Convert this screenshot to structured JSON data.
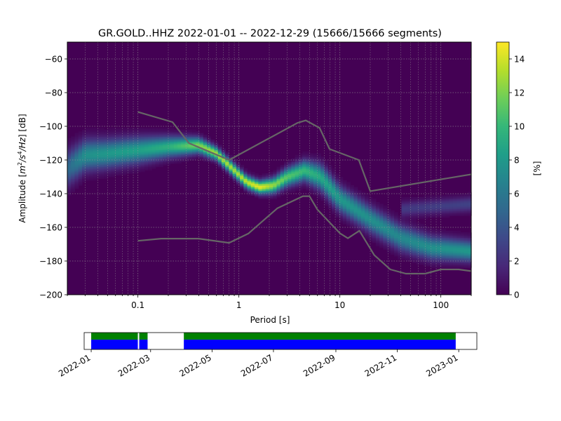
{
  "title": "GR.GOLD..HHZ   2022-01-01 -- 2022-12-29  (15666/15666 segments)",
  "chart_data": {
    "type": "heatmap",
    "title": "GR.GOLD..HHZ   2022-01-01 -- 2022-12-29  (15666/15666 segments)",
    "xlabel": "Period [s]",
    "ylabel_parts": [
      "Amplitude [",
      "m",
      "2",
      "/",
      "s",
      "4",
      "/",
      "Hz",
      "] [dB]"
    ],
    "xscale": "log",
    "xlim": [
      0.02,
      200
    ],
    "ylim": [
      -200,
      -50
    ],
    "xticks": [
      {
        "v": 0.1,
        "label": "0.1"
      },
      {
        "v": 1,
        "label": "1"
      },
      {
        "v": 10,
        "label": "10"
      },
      {
        "v": 100,
        "label": "100"
      }
    ],
    "yticks": [
      {
        "v": -200,
        "label": "−200"
      },
      {
        "v": -180,
        "label": "−180"
      },
      {
        "v": -160,
        "label": "−160"
      },
      {
        "v": -140,
        "label": "−140"
      },
      {
        "v": -120,
        "label": "−120"
      },
      {
        "v": -100,
        "label": "−100"
      },
      {
        "v": -80,
        "label": "−80"
      },
      {
        "v": -60,
        "label": "−60"
      }
    ],
    "grid": true,
    "colorbar": {
      "label": "[%]",
      "range": [
        0,
        15
      ],
      "ticks": [
        {
          "v": 0,
          "label": "0"
        },
        {
          "v": 2,
          "label": "2"
        },
        {
          "v": 4,
          "label": "4"
        },
        {
          "v": 6,
          "label": "6"
        },
        {
          "v": 8,
          "label": "8"
        },
        {
          "v": 10,
          "label": "10"
        },
        {
          "v": 12,
          "label": "12"
        },
        {
          "v": 14,
          "label": "14"
        }
      ],
      "colormap": [
        "#440154",
        "#482878",
        "#3e4989",
        "#31688e",
        "#26828e",
        "#1f9e89",
        "#35b779",
        "#6ece58",
        "#b5de2b",
        "#fde725"
      ]
    },
    "density_ridge": [
      {
        "x": 0.02,
        "y": -125,
        "peak": 5,
        "width": 7
      },
      {
        "x": 0.03,
        "y": -117,
        "peak": 7.5,
        "width": 6
      },
      {
        "x": 0.05,
        "y": -116,
        "peak": 8,
        "width": 5.5
      },
      {
        "x": 0.1,
        "y": -114,
        "peak": 8.5,
        "width": 5
      },
      {
        "x": 0.2,
        "y": -112,
        "peak": 9.5,
        "width": 4
      },
      {
        "x": 0.4,
        "y": -111,
        "peak": 12,
        "width": 3
      },
      {
        "x": 0.6,
        "y": -116,
        "peak": 13,
        "width": 2.5
      },
      {
        "x": 0.9,
        "y": -126,
        "peak": 13,
        "width": 2.5
      },
      {
        "x": 1.2,
        "y": -133,
        "peak": 13.5,
        "width": 2.5
      },
      {
        "x": 1.6,
        "y": -136,
        "peak": 14.5,
        "width": 2.5
      },
      {
        "x": 2.2,
        "y": -135,
        "peak": 12.5,
        "width": 3
      },
      {
        "x": 3,
        "y": -130,
        "peak": 11,
        "width": 3.5
      },
      {
        "x": 4.5,
        "y": -126,
        "peak": 10,
        "width": 4
      },
      {
        "x": 6.5,
        "y": -130,
        "peak": 9,
        "width": 5
      },
      {
        "x": 10,
        "y": -143,
        "peak": 8,
        "width": 5
      },
      {
        "x": 20,
        "y": -155,
        "peak": 7.5,
        "width": 5
      },
      {
        "x": 40,
        "y": -166,
        "peak": 7,
        "width": 5
      },
      {
        "x": 80,
        "y": -172,
        "peak": 7.5,
        "width": 4.5
      },
      {
        "x": 200,
        "y": -174,
        "peak": 8,
        "width": 4
      }
    ],
    "secondary_ridge": [
      {
        "x": 40,
        "y": -149,
        "peak": 2.5,
        "width": 3
      },
      {
        "x": 200,
        "y": -146,
        "peak": 3,
        "width": 3
      }
    ],
    "reference_curves": [
      {
        "color": "#666666",
        "points": [
          [
            0.1,
            -91.5
          ],
          [
            0.22,
            -97.5
          ],
          [
            0.32,
            -110
          ],
          [
            0.8,
            -120
          ],
          [
            3.8,
            -98
          ],
          [
            4.6,
            -96.5
          ],
          [
            6.3,
            -101
          ],
          [
            7.9,
            -113.5
          ],
          [
            15.4,
            -120
          ],
          [
            20,
            -138.5
          ],
          [
            200,
            -128.5
          ]
        ]
      },
      {
        "color": "#666666",
        "points": [
          [
            0.1,
            -168
          ],
          [
            0.17,
            -166.7
          ],
          [
            0.4,
            -166.7
          ],
          [
            0.8,
            -169.2
          ],
          [
            1.24,
            -163.7
          ],
          [
            2.4,
            -148.7
          ],
          [
            4.3,
            -141.5
          ],
          [
            5,
            -141.5
          ],
          [
            6,
            -149.5
          ],
          [
            10,
            -163.5
          ],
          [
            12,
            -166.5
          ],
          [
            15.6,
            -162
          ],
          [
            21.9,
            -176.5
          ],
          [
            31.6,
            -185
          ],
          [
            45,
            -187.5
          ],
          [
            70,
            -187.5
          ],
          [
            100,
            -185
          ],
          [
            150,
            -185
          ],
          [
            200,
            -186
          ]
        ]
      }
    ],
    "data_availability": {
      "xticks": [
        {
          "v": "2022-01",
          "label": "2022-01"
        },
        {
          "v": "2022-03",
          "label": "2022-03"
        },
        {
          "v": "2022-05",
          "label": "2022-05"
        },
        {
          "v": "2022-07",
          "label": "2022-07"
        },
        {
          "v": "2022-09",
          "label": "2022-09"
        },
        {
          "v": "2022-11",
          "label": "2022-11"
        },
        {
          "v": "2023-01",
          "label": "2023-01"
        }
      ],
      "xlim": [
        "2021-12-25",
        "2023-01-19"
      ],
      "segments": [
        {
          "start": "2022-01-01",
          "end": "2022-02-26"
        },
        {
          "start": "2022-04-03",
          "end": "2022-12-29"
        }
      ],
      "gaps": [
        "2022-02-17"
      ],
      "colors": {
        "used": "#008000",
        "available": "#0000ff",
        "gap": "#ffffff"
      }
    }
  }
}
